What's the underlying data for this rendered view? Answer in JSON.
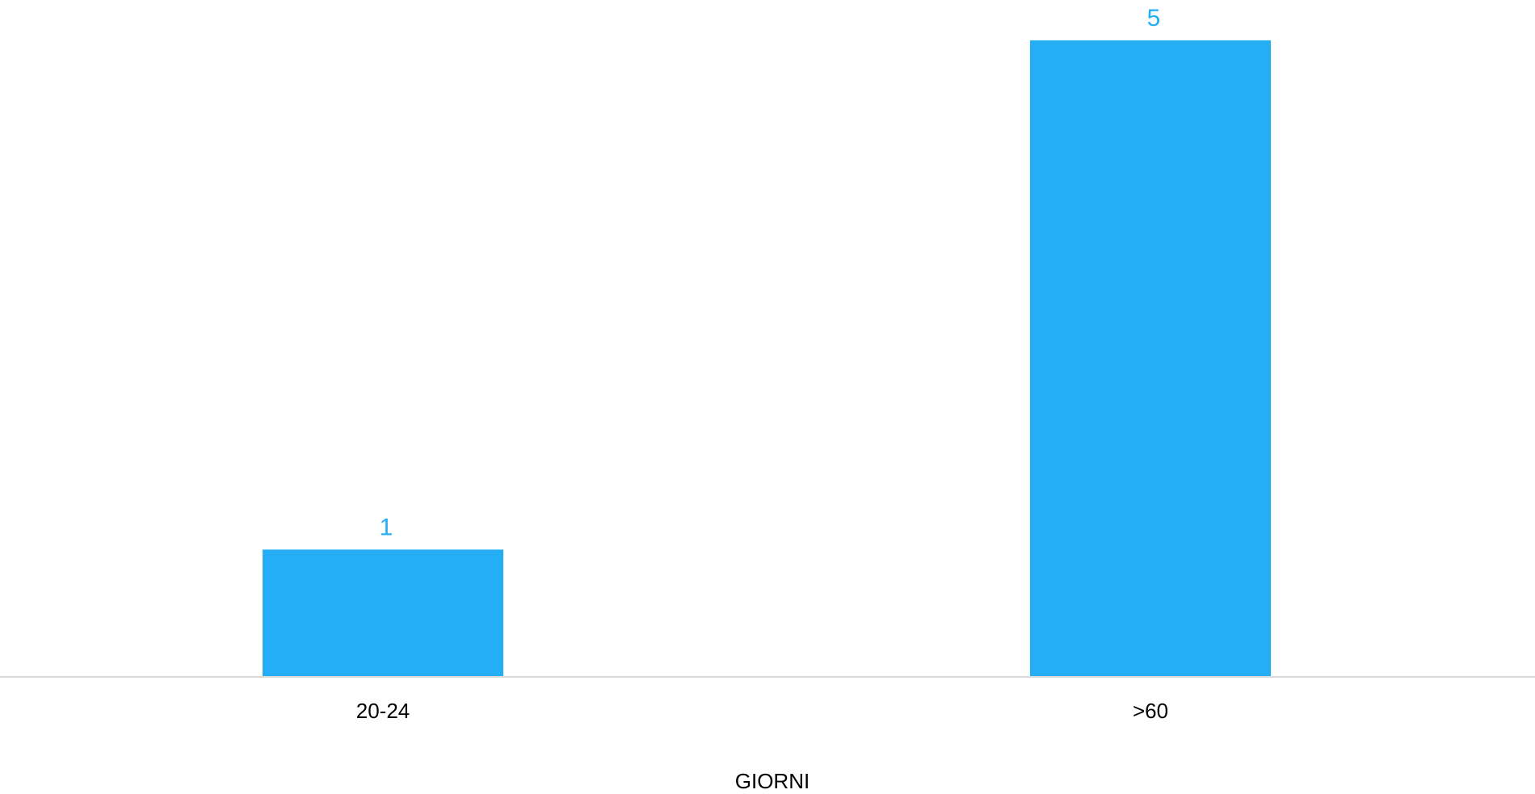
{
  "chart_data": {
    "type": "bar",
    "categories": [
      "20-24",
      ">60"
    ],
    "values": [
      1,
      5
    ],
    "title": "",
    "xlabel": "GIORNI",
    "ylabel": "",
    "ylim": [
      0,
      5
    ],
    "grid": false,
    "legend": "none",
    "data_labels": true,
    "colors": {
      "bar": "#25ADF5",
      "data_label": "#25ADF5",
      "axis_line": "#D9D9D9",
      "text": "#000000"
    }
  }
}
